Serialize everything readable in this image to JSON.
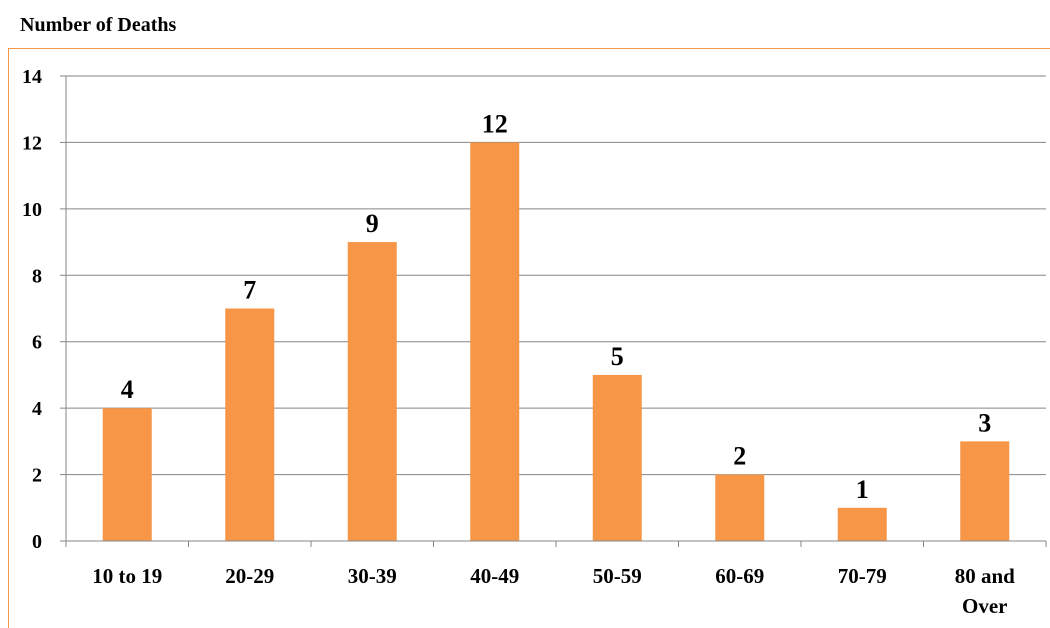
{
  "chart_data": {
    "type": "bar",
    "title": "Number of Deaths",
    "categories": [
      [
        "10 to 19"
      ],
      [
        "20-29"
      ],
      [
        "30-39"
      ],
      [
        "40-49"
      ],
      [
        "50-59"
      ],
      [
        "60-69"
      ],
      [
        "70-79"
      ],
      [
        "80 and",
        "Over"
      ]
    ],
    "values": [
      4,
      7,
      9,
      12,
      5,
      2,
      1,
      3
    ],
    "ylim": [
      0,
      14
    ],
    "yticks": [
      0,
      2,
      4,
      6,
      8,
      10,
      12,
      14
    ],
    "grid": true,
    "data_labels": true,
    "bar_color": "#f79646",
    "frame_color": "#f79646",
    "gridline_color": "#868686"
  }
}
